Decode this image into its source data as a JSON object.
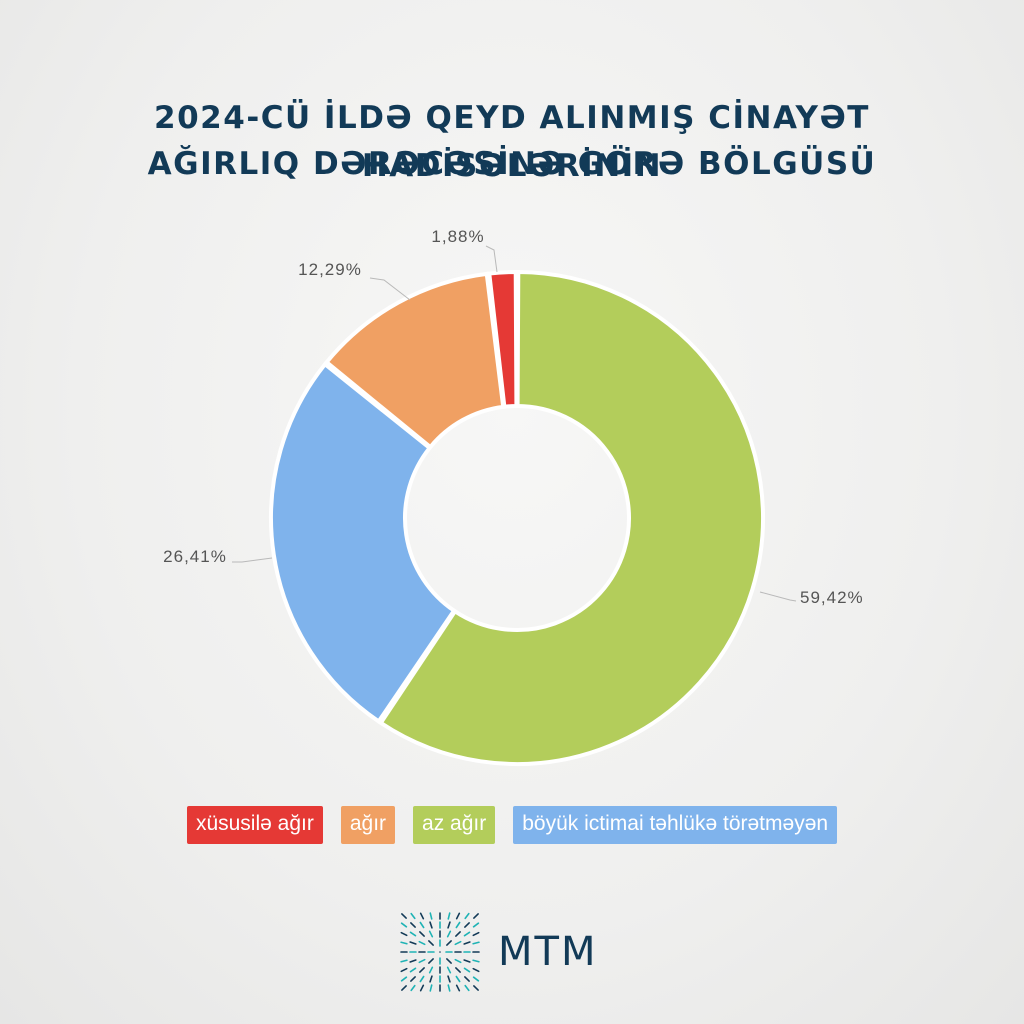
{
  "title": {
    "line1": "2024-CÜ İLDƏ QEYD ALINMIŞ CİNAYƏT HADİSƏLƏRİNİN",
    "line2": "AĞIRLIQ DƏRƏCƏSİNƏ GÖRƏ BÖLGÜSÜ"
  },
  "chart_data": {
    "type": "pie",
    "variant": "donut",
    "title": "2024-CÜ İLDƏ QEYD ALINMIŞ CİNAYƏT HADİSƏLƏRİNİN AĞIRLIQ DƏRƏCƏSİNƏ GÖRƏ BÖLGÜSÜ",
    "categories": [
      "xüsusilə ağır",
      "ağır",
      "az ağır",
      "böyük ictimai təhlükə törətməyən"
    ],
    "values": [
      1.88,
      12.29,
      59.42,
      26.41
    ],
    "labels": [
      "1,88%",
      "12,29%",
      "59,42%",
      "26,41%"
    ],
    "colors": [
      "#e53935",
      "#f0a063",
      "#b3cd5b",
      "#7fb3ec"
    ],
    "legend_position": "bottom"
  },
  "legend": [
    {
      "label": "xüsusilə ağır",
      "color": "#e53935"
    },
    {
      "label": "ağır",
      "color": "#f0a063"
    },
    {
      "label": "az ağır",
      "color": "#b3cd5b"
    },
    {
      "label": "böyük ictimai təhlükə törətməyən",
      "color": "#7fb3ec"
    }
  ],
  "brand": {
    "name": "MTM",
    "icon": "mtm-logo-icon"
  }
}
